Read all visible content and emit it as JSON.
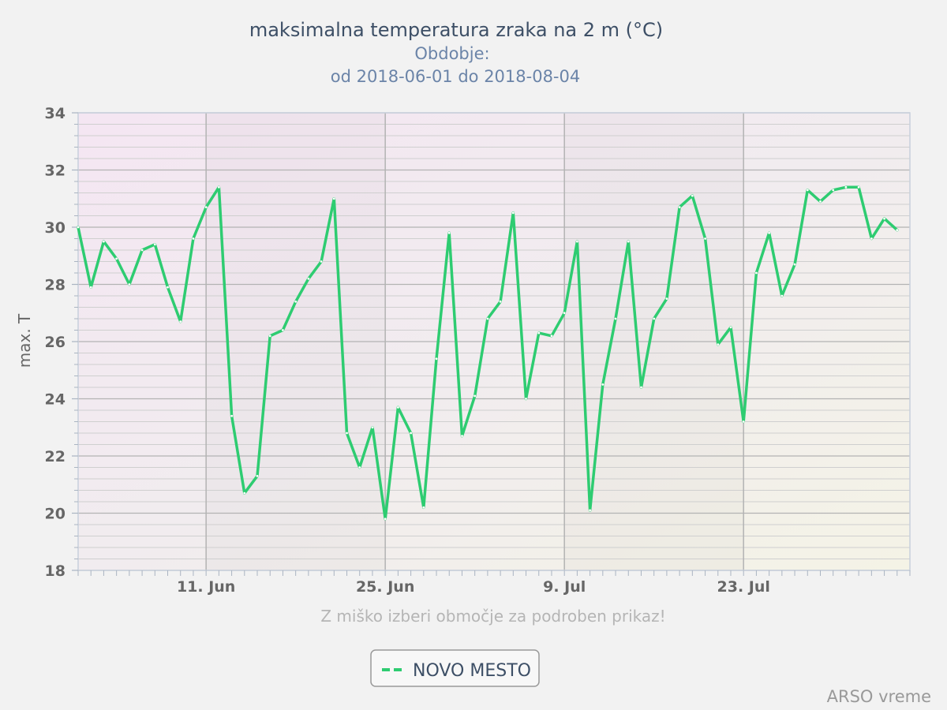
{
  "chart_data": {
    "type": "line",
    "title": "maksimalna temperatura zraka na 2 m (°C)",
    "subtitle": [
      "Obdobje:",
      "od 2018-06-01 do 2018-08-04"
    ],
    "ylabel": "max. T",
    "xlabel": "",
    "ylim": [
      18,
      34
    ],
    "y_ticks": [
      18,
      20,
      22,
      24,
      26,
      28,
      30,
      32,
      34
    ],
    "x_range": [
      "2018-06-01",
      "2018-08-05"
    ],
    "x_ticks": [
      {
        "label": "11. Jun",
        "date": "2018-06-11"
      },
      {
        "label": "25. Jun",
        "date": "2018-06-25"
      },
      {
        "label": "9. Jul",
        "date": "2018-07-09"
      },
      {
        "label": "23. Jul",
        "date": "2018-07-23"
      }
    ],
    "grid": true,
    "legend_position": "bottom-center",
    "series_color": "#2ecc71",
    "series": [
      {
        "name": "NOVO MESTO",
        "start_date": "2018-06-01",
        "interval_days": 1,
        "values": [
          30.0,
          27.9,
          29.5,
          28.9,
          28.0,
          29.2,
          29.4,
          27.9,
          26.7,
          29.6,
          30.7,
          31.4,
          23.4,
          20.7,
          21.3,
          26.2,
          26.4,
          27.4,
          28.2,
          28.8,
          31.0,
          22.8,
          21.6,
          23.0,
          19.8,
          23.7,
          22.8,
          20.2,
          25.4,
          29.8,
          22.7,
          24.1,
          26.8,
          27.4,
          30.5,
          24.0,
          26.3,
          26.2,
          27.0,
          29.5,
          20.1,
          24.5,
          26.8,
          29.5,
          24.4,
          26.8,
          27.5,
          30.7,
          31.1,
          29.6,
          25.9,
          26.5,
          23.2,
          28.4,
          29.8,
          27.6,
          28.7,
          31.3,
          30.9,
          31.3,
          31.4,
          31.4,
          29.6,
          30.3,
          29.9
        ]
      }
    ]
  },
  "hint": "Z miško izberi območje za podroben prikaz!",
  "credits": "ARSO vreme"
}
